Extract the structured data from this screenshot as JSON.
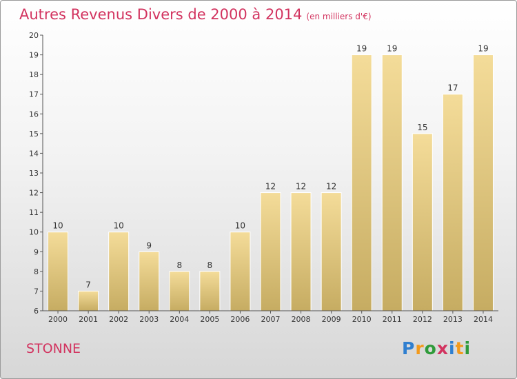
{
  "header": {
    "title": "Autres Revenus Divers de 2000 à 2014",
    "subtitle": "(en milliers d'€)"
  },
  "footer": {
    "commune": "STONNE",
    "brand": {
      "p": "P",
      "r": "r",
      "o": "o",
      "x": "x",
      "i1": "i",
      "t": "t",
      "i2": "i"
    }
  },
  "colors": {
    "title": "#d2335f",
    "bar_top": "#f4dc99",
    "bar_bottom": "#c6ac62",
    "axis": "#555555"
  },
  "chart_data": {
    "type": "bar",
    "categories": [
      "2000",
      "2001",
      "2002",
      "2003",
      "2004",
      "2005",
      "2006",
      "2007",
      "2008",
      "2009",
      "2010",
      "2011",
      "2012",
      "2013",
      "2014"
    ],
    "values": [
      10,
      7,
      10,
      9,
      8,
      8,
      10,
      12,
      12,
      12,
      19,
      19,
      15,
      17,
      19
    ],
    "ylim": [
      6,
      20
    ],
    "yticks": [
      6,
      7,
      8,
      9,
      10,
      11,
      12,
      13,
      14,
      15,
      16,
      17,
      18,
      19,
      20
    ],
    "grid": false,
    "legend": "none"
  }
}
